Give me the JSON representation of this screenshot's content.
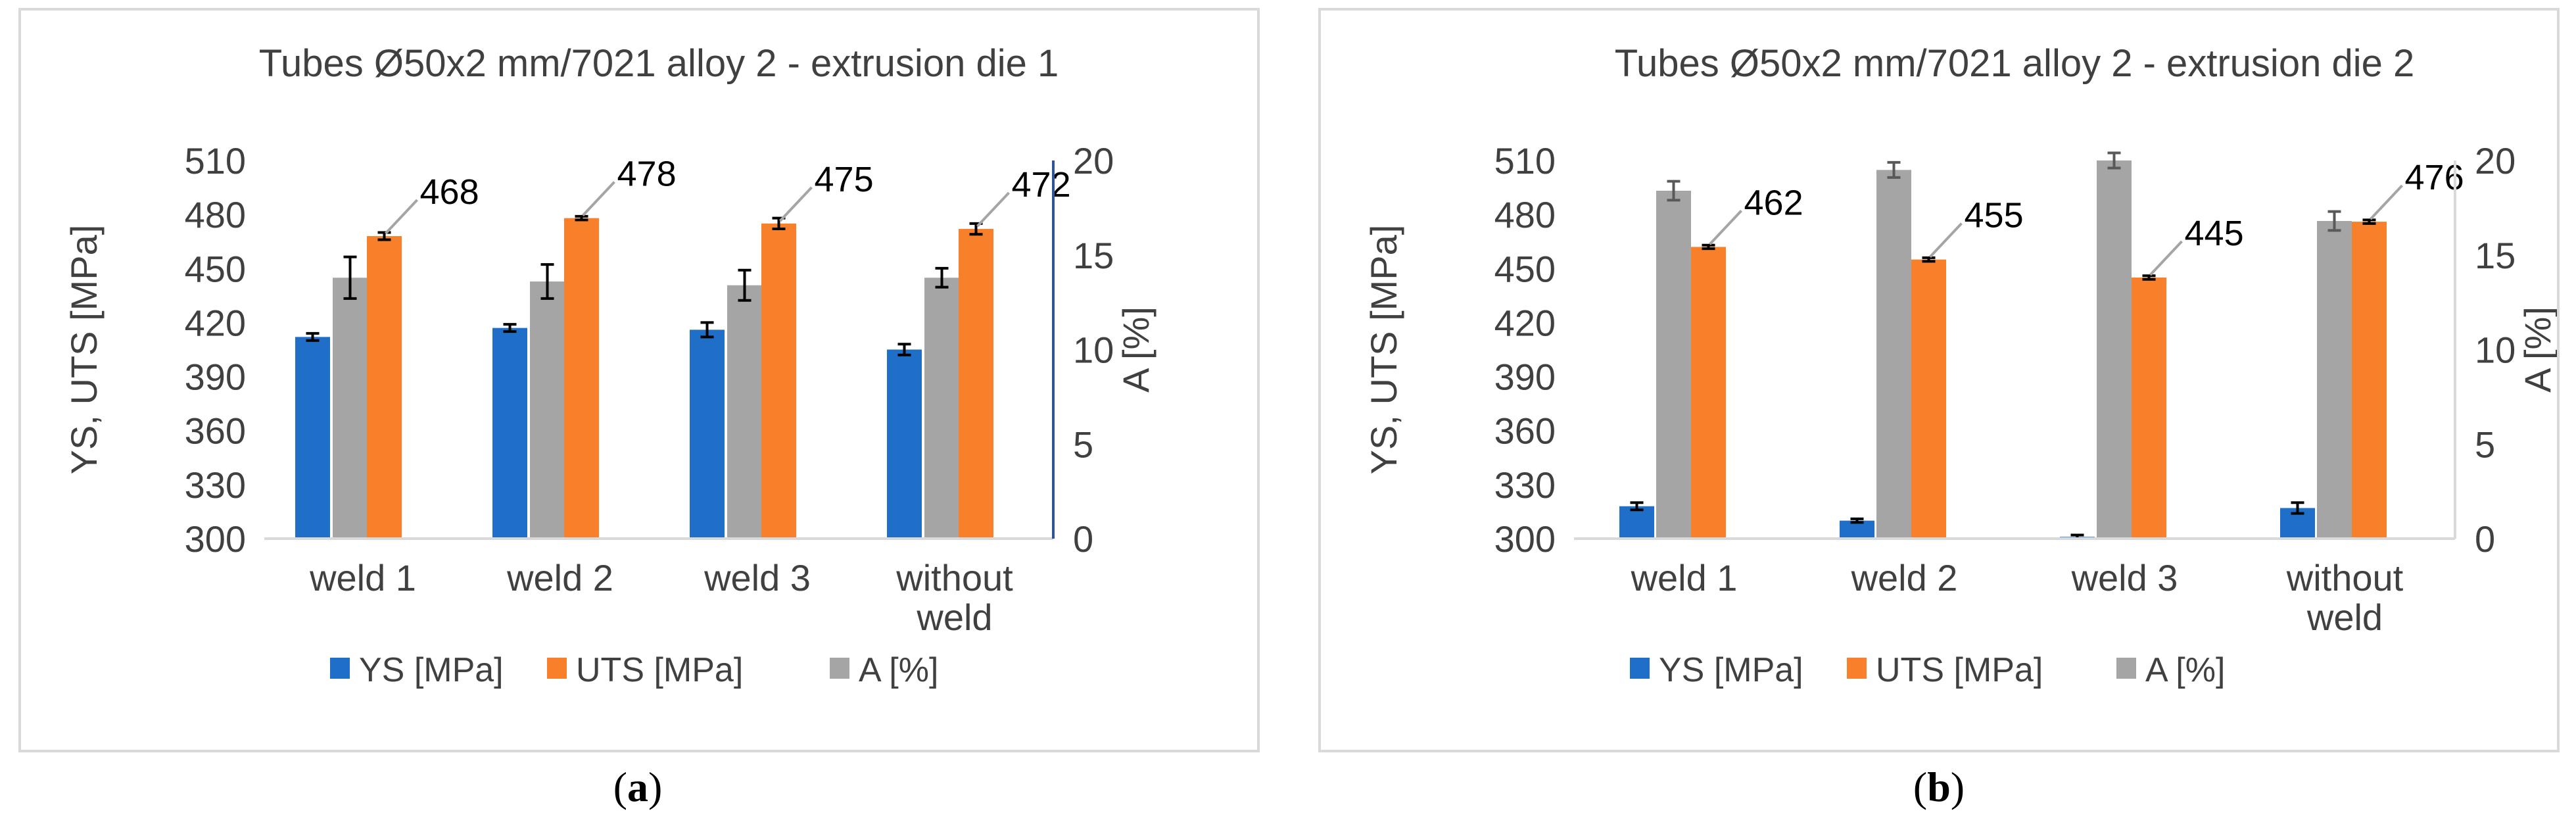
{
  "colors": {
    "ys": "#1f6fc9",
    "uts": "#f8802b",
    "a": "#a5a5a5",
    "axis": "#7f7f7f",
    "grid": "#d9d9d9",
    "errorbar": "#000000"
  },
  "panels": [
    {
      "label_open": "(",
      "label_letter": "a",
      "label_close": ")"
    },
    {
      "label_open": "(",
      "label_letter": "b",
      "label_close": ")"
    }
  ],
  "chart_data": [
    {
      "type": "bar",
      "title": "Tubes Ø50x2 mm/7021 alloy 2 - extrusion die 1",
      "categories": [
        [
          "weld 1"
        ],
        [
          "weld 2"
        ],
        [
          "weld 3"
        ],
        [
          "without",
          "weld"
        ]
      ],
      "ylabel": "YS, UTS [MPa]",
      "ylabel2": "A [%]",
      "ylim": [
        300,
        510
      ],
      "yticks": [
        300,
        330,
        360,
        390,
        420,
        450,
        480,
        510
      ],
      "ylim2": [
        0,
        20
      ],
      "yticks2": [
        0,
        5,
        10,
        15,
        20
      ],
      "series": [
        {
          "name": "YS [MPa]",
          "key": "ys",
          "axis": "left",
          "values": [
            412,
            417,
            416,
            405
          ],
          "errors": [
            2,
            2,
            4,
            3
          ]
        },
        {
          "name": "A [%]",
          "key": "a",
          "axis": "right",
          "values": [
            13.8,
            13.6,
            13.4,
            13.8
          ],
          "errors": [
            1.1,
            0.9,
            0.8,
            0.5
          ]
        },
        {
          "name": "UTS [MPa]",
          "key": "uts",
          "axis": "left",
          "values": [
            468,
            478,
            475,
            472
          ],
          "errors": [
            2,
            1,
            3,
            3
          ]
        }
      ],
      "data_labels": [
        "468",
        "478",
        "475",
        "472"
      ],
      "legend_order": [
        "YS [MPa]",
        "UTS [MPa]",
        "A [%]"
      ],
      "legend": "bottom"
    },
    {
      "type": "bar",
      "title": "Tubes Ø50x2 mm/7021 alloy 2 - extrusion die 2",
      "categories": [
        [
          "weld 1"
        ],
        [
          "weld 2"
        ],
        [
          "weld 3"
        ],
        [
          "without",
          "weld"
        ]
      ],
      "ylabel": "YS, UTS [MPa]",
      "ylabel2": "A [%]",
      "ylim": [
        300,
        510
      ],
      "yticks": [
        300,
        330,
        360,
        390,
        420,
        450,
        480,
        510
      ],
      "ylim2": [
        0,
        20
      ],
      "yticks2": [
        0,
        5,
        10,
        15,
        20
      ],
      "series": [
        {
          "name": "YS [MPa]",
          "key": "ys",
          "axis": "left",
          "values": [
            318,
            310,
            301,
            317
          ],
          "errors": [
            2,
            1,
            1,
            3
          ]
        },
        {
          "name": "A [%]",
          "key": "a",
          "axis": "right",
          "values": [
            18.4,
            19.5,
            20.0,
            16.8
          ],
          "errors": [
            0.5,
            0.4,
            0.4,
            0.5
          ]
        },
        {
          "name": "UTS [MPa]",
          "key": "uts",
          "axis": "left",
          "values": [
            462,
            455,
            445,
            476
          ],
          "errors": [
            1,
            1,
            1,
            1
          ]
        }
      ],
      "data_labels": [
        "462",
        "455",
        "445",
        "476"
      ],
      "legend_order": [
        "YS [MPa]",
        "UTS [MPa]",
        "A [%]"
      ],
      "legend": "bottom"
    }
  ]
}
